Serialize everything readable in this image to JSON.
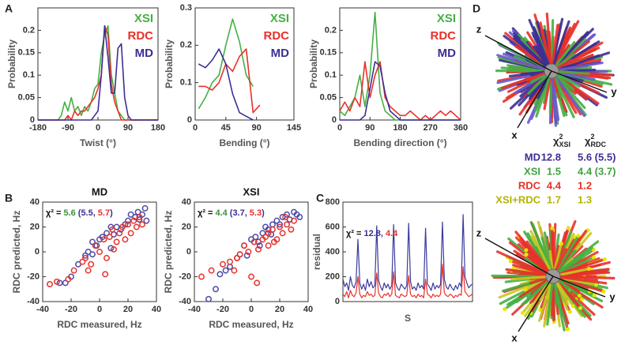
{
  "panel_labels": [
    "A",
    "B",
    "C",
    "D"
  ],
  "chart_data": [
    {
      "type": "line",
      "xlabel": "Twist (°)",
      "ylabel": "Probability",
      "xlim": [
        -180,
        180
      ],
      "xticks": [
        -180,
        -90,
        0,
        90,
        180
      ],
      "ylim": [
        0,
        0.25
      ],
      "yticks": [
        0,
        0.05,
        0.1,
        0.15,
        0.2
      ],
      "legend": "upper right",
      "x": [
        -180,
        -170,
        -160,
        -150,
        -140,
        -130,
        -120,
        -110,
        -100,
        -90,
        -80,
        -70,
        -60,
        -50,
        -40,
        -30,
        -20,
        -10,
        0,
        10,
        20,
        30,
        40,
        50,
        60,
        70,
        80,
        90,
        100,
        110,
        120,
        130,
        140,
        150,
        160,
        170,
        180
      ],
      "series": [
        {
          "name": "XSI",
          "color": "#45b043",
          "values": [
            0,
            0,
            0,
            0,
            0,
            0,
            0,
            0.01,
            0.04,
            0.02,
            0.05,
            0.02,
            0.03,
            0.01,
            0.03,
            0.02,
            0.04,
            0.07,
            0.08,
            0.15,
            0.19,
            0.21,
            0.1,
            0.06,
            0.02,
            0.01,
            0,
            0,
            0,
            0,
            0,
            0,
            0,
            0,
            0,
            0,
            0
          ]
        },
        {
          "name": "RDC",
          "color": "#e8312a",
          "values": [
            0,
            0,
            0,
            0,
            0,
            0,
            0,
            0,
            0,
            0.01,
            0,
            0.02,
            0.01,
            0.02,
            0.02,
            0.03,
            0.04,
            0.05,
            0.07,
            0.1,
            0.21,
            0.19,
            0.08,
            0.04,
            0.02,
            0,
            0,
            0,
            0,
            0,
            0,
            0,
            0,
            0,
            0,
            0,
            0
          ]
        },
        {
          "name": "MD",
          "color": "#3b2f94",
          "values": [
            0,
            0,
            0,
            0,
            0,
            0,
            0,
            0,
            0,
            0,
            0,
            0,
            0,
            0,
            0,
            0,
            0,
            0.01,
            0.02,
            0.1,
            0.21,
            0.14,
            0.06,
            0.06,
            0.16,
            0.17,
            0.05,
            0.01,
            0,
            0,
            0,
            0,
            0,
            0,
            0,
            0,
            0
          ]
        }
      ]
    },
    {
      "type": "line",
      "xlabel": "Bending (°)",
      "ylabel": "Probability",
      "xlim": [
        0,
        145
      ],
      "xticks": [
        0,
        45,
        90,
        145
      ],
      "ylim": [
        0,
        0.3
      ],
      "yticks": [
        0,
        0.1,
        0.2,
        0.3
      ],
      "legend": "upper right",
      "x": [
        5,
        15,
        25,
        35,
        45,
        55,
        65,
        75,
        85,
        95
      ],
      "series": [
        {
          "name": "XSI",
          "color": "#45b043",
          "values": [
            0.03,
            0.06,
            0.1,
            0.12,
            0.2,
            0.27,
            0.21,
            0.12,
            0.09,
            null
          ]
        },
        {
          "name": "RDC",
          "color": "#e8312a",
          "values": [
            0.09,
            0.09,
            0.08,
            0.1,
            0.15,
            0.13,
            0.17,
            0.19,
            0.02,
            0.04
          ]
        },
        {
          "name": "MD",
          "color": "#3b2f94",
          "values": [
            0.15,
            0.14,
            0.16,
            0.19,
            0.15,
            0.07,
            0.02,
            0.01,
            0,
            null
          ]
        }
      ]
    },
    {
      "type": "line",
      "xlabel": "Bending direction (°)",
      "ylabel": "Probability",
      "xlim": [
        0,
        360
      ],
      "xticks": [
        0,
        90,
        180,
        270,
        360
      ],
      "ylim": [
        0,
        0.25
      ],
      "yticks": [
        0,
        0.05,
        0.1,
        0.15,
        0.2
      ],
      "legend": "upper right",
      "x": [
        0,
        15,
        30,
        45,
        60,
        75,
        90,
        105,
        120,
        135,
        150,
        165,
        180,
        195,
        210,
        225,
        240,
        255,
        270,
        285,
        300,
        315,
        330,
        345,
        360
      ],
      "series": [
        {
          "name": "XSI",
          "color": "#45b043",
          "values": [
            0.02,
            0.01,
            0.03,
            0.05,
            0.1,
            0.03,
            0.1,
            0.24,
            0.06,
            0.02,
            0.01,
            0,
            0,
            0,
            0,
            0,
            0,
            0,
            0,
            0,
            0,
            0,
            0,
            0,
            0
          ]
        },
        {
          "name": "RDC",
          "color": "#e8312a",
          "values": [
            0.02,
            0.04,
            0.02,
            0.05,
            0.03,
            0.13,
            0.05,
            0.1,
            0.13,
            0.05,
            0.03,
            0.02,
            0.01,
            0.01,
            0.02,
            0.01,
            0,
            0.01,
            0,
            0.01,
            0.02,
            0.01,
            0.02,
            0.01,
            0
          ]
        },
        {
          "name": "MD",
          "color": "#3b2f94",
          "values": [
            0,
            0,
            0,
            0,
            0,
            0.01,
            0.07,
            0.13,
            0.12,
            0.06,
            0.02,
            0.01,
            0,
            0,
            0,
            0,
            0,
            0,
            0,
            0,
            0,
            0,
            0,
            0,
            0
          ]
        }
      ]
    },
    {
      "type": "scatter",
      "title": "MD",
      "xlabel": "RDC measured, Hz",
      "ylabel": "RDC predicted, Hz",
      "xlim": [
        -40,
        40
      ],
      "xticks": [
        -40,
        -20,
        0,
        20,
        40
      ],
      "ylim": [
        -40,
        40
      ],
      "yticks": [
        -40,
        -20,
        0,
        20,
        40
      ],
      "annotation": [
        {
          "text": "χ² =",
          "color": "#111"
        },
        {
          "text": "5.6",
          "color": "#3a8f3a"
        },
        {
          "text": "(5.5,",
          "color": "#3b2f94"
        },
        {
          "text": "5.7",
          "color": "#e8312a"
        },
        {
          "text": ")",
          "color": "#3b2f94"
        }
      ],
      "series": [
        {
          "color": "#4a4aa8",
          "x": [
            -28,
            -24,
            -20,
            -15,
            -10,
            -8,
            -5,
            -2,
            0,
            2,
            5,
            8,
            10,
            12,
            15,
            18,
            20,
            22,
            25,
            27,
            28,
            30,
            32,
            33,
            -5,
            8
          ],
          "values": [
            -25,
            -25,
            -20,
            -10,
            -3,
            0,
            -2,
            5,
            10,
            12,
            15,
            3,
            14,
            20,
            18,
            22,
            25,
            30,
            28,
            32,
            26,
            30,
            35,
            25,
            8,
            20
          ]
        },
        {
          "color": "#e8312a",
          "x": [
            -35,
            -30,
            -22,
            -18,
            -12,
            -10,
            -6,
            -3,
            0,
            3,
            5,
            7,
            9,
            12,
            14,
            16,
            18,
            20,
            22,
            24,
            26,
            28,
            30,
            -8,
            4,
            10
          ],
          "values": [
            -26,
            -24,
            -22,
            -15,
            -8,
            -5,
            -10,
            5,
            0,
            10,
            -5,
            12,
            18,
            8,
            15,
            20,
            10,
            22,
            15,
            25,
            20,
            28,
            22,
            -15,
            -18,
            2
          ]
        }
      ]
    },
    {
      "type": "scatter",
      "title": "XSI",
      "xlabel": "RDC measured, Hz",
      "ylabel": "RDC predicted, Hz",
      "xlim": [
        -40,
        40
      ],
      "xticks": [
        -40,
        -20,
        0,
        20,
        40
      ],
      "ylim": [
        -40,
        40
      ],
      "yticks": [
        -40,
        -20,
        0,
        20,
        40
      ],
      "annotation": [
        {
          "text": "χ² =",
          "color": "#111"
        },
        {
          "text": "4.4",
          "color": "#3a8f3a"
        },
        {
          "text": "(3.7,",
          "color": "#3b2f94"
        },
        {
          "text": "5.3",
          "color": "#e8312a"
        },
        {
          "text": ")",
          "color": "#3b2f94"
        }
      ],
      "series": [
        {
          "color": "#4a4aa8",
          "x": [
            -30,
            -25,
            -22,
            -18,
            -15,
            -10,
            -5,
            -3,
            0,
            3,
            5,
            8,
            10,
            12,
            15,
            18,
            20,
            22,
            25,
            27,
            30,
            32,
            34,
            -8,
            6,
            14
          ],
          "values": [
            -38,
            -30,
            -18,
            -15,
            -12,
            -5,
            5,
            -3,
            10,
            12,
            8,
            15,
            20,
            18,
            22,
            25,
            22,
            28,
            30,
            26,
            32,
            30,
            28,
            -2,
            5,
            14
          ]
        },
        {
          "color": "#e8312a",
          "x": [
            -35,
            -28,
            -20,
            -15,
            -12,
            -8,
            -5,
            -2,
            0,
            2,
            5,
            8,
            10,
            12,
            15,
            18,
            20,
            22,
            25,
            28,
            30,
            -10,
            4,
            12,
            16,
            24
          ],
          "values": [
            -20,
            -15,
            -10,
            -8,
            -15,
            -2,
            5,
            0,
            -20,
            8,
            2,
            10,
            12,
            15,
            18,
            10,
            20,
            15,
            22,
            18,
            25,
            -5,
            -25,
            5,
            8,
            28
          ]
        }
      ]
    },
    {
      "type": "line",
      "xlabel": "S",
      "ylabel": "residual",
      "ylim": [
        0,
        800
      ],
      "yticks": [
        0,
        200,
        400,
        600,
        800
      ],
      "annotation": [
        {
          "text": "χ² =",
          "color": "#111"
        },
        {
          "text": "12.8,",
          "color": "#3b2f94"
        },
        {
          "text": "4.4",
          "color": "#e8312a"
        }
      ],
      "series": [
        {
          "color": "#3b3b9e",
          "values": [
            180,
            120,
            150,
            90,
            200,
            130,
            110,
            160,
            500,
            150,
            100,
            140,
            90,
            180,
            120,
            160,
            110,
            130,
            610,
            170,
            120,
            90,
            150,
            110,
            140,
            100,
            130,
            620,
            150,
            110,
            90,
            140,
            120,
            100,
            130,
            630,
            160,
            100,
            120,
            90,
            150,
            110,
            130,
            100,
            590,
            140,
            120,
            90,
            150,
            100,
            130,
            110,
            140,
            640,
            180,
            120,
            100,
            140,
            110,
            90,
            130,
            100,
            150,
            120,
            700,
            200,
            150,
            110,
            130,
            140
          ]
        },
        {
          "color": "#e8312a",
          "values": [
            60,
            40,
            80,
            30,
            90,
            50,
            40,
            70,
            200,
            60,
            30,
            50,
            40,
            80,
            50,
            60,
            40,
            50,
            230,
            70,
            40,
            30,
            60,
            50,
            70,
            40,
            60,
            240,
            50,
            40,
            30,
            60,
            50,
            40,
            50,
            210,
            60,
            40,
            50,
            30,
            60,
            40,
            50,
            30,
            180,
            60,
            50,
            30,
            60,
            40,
            50,
            40,
            60,
            300,
            70,
            50,
            40,
            60,
            50,
            30,
            50,
            40,
            60,
            50,
            280,
            80,
            60,
            40,
            50,
            60
          ]
        }
      ]
    }
  ],
  "panel_d": {
    "top_axes": [
      "z",
      "y",
      "x"
    ],
    "bottom_axes": [
      "z",
      "y",
      "x"
    ],
    "table": {
      "columns": [
        {
          "symbol": "χ",
          "sup": "2",
          "sub": "XSI"
        },
        {
          "symbol": "χ",
          "sup": "2",
          "sub": "RDC"
        }
      ],
      "rows": [
        {
          "name": "MD",
          "color": "#3b2f94",
          "cells": [
            "12.8",
            "5.6 (5.5)"
          ]
        },
        {
          "name": "XSI",
          "color": "#3fa33f",
          "cells": [
            "1.5",
            "4.4 (3.7)"
          ]
        },
        {
          "name": "RDC",
          "color": "#e8312a",
          "cells": [
            "4.4",
            "1.2"
          ]
        },
        {
          "name": "XSI+RDC",
          "color": "#b4b400",
          "cells": [
            "1.7",
            "1.3"
          ]
        }
      ]
    }
  }
}
